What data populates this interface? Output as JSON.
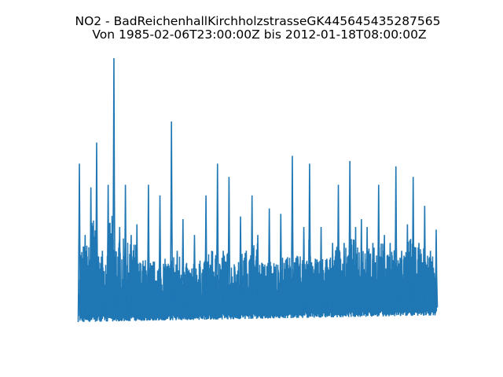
{
  "chart_data": {
    "type": "line",
    "title": "NO2 - BadReichenhallKirchholzstrasseGK445645435287565",
    "subtitle": "Von 1985-02-06T23:00:00Z bis 2012-01-18T08:00:00Z",
    "x_start": "1985-02-06T23:00:00Z",
    "x_end": "2012-01-18T08:00:00Z",
    "axes_visible": false,
    "grid": false,
    "legend": "none",
    "color": "#1f77b4",
    "value_note_units": "relative (no axis shown)",
    "ylim": [
      0,
      100
    ],
    "peak_envelope": [
      60,
      33,
      51,
      68,
      27,
      52,
      100,
      36,
      52,
      33,
      37,
      22,
      52,
      21,
      48,
      22,
      76,
      27,
      39,
      19,
      33,
      21,
      48,
      27,
      60,
      27,
      55,
      21,
      40,
      27,
      48,
      33,
      21,
      43,
      21,
      41,
      24,
      63,
      24,
      36,
      60,
      24,
      36,
      24,
      30,
      52,
      30,
      61,
      36,
      39,
      36,
      30,
      52,
      33,
      30,
      59,
      27,
      37,
      55,
      30,
      44,
      27,
      35
    ],
    "lower_envelope_start": 0,
    "lower_envelope_end": 2.5
  }
}
